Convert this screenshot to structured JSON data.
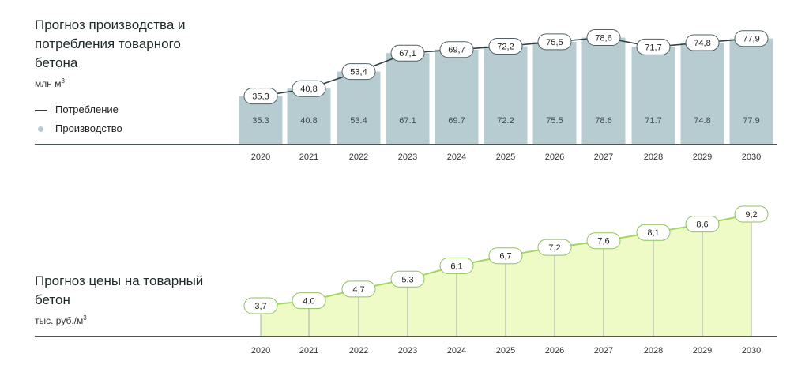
{
  "chart_data": [
    {
      "type": "bar",
      "title": "Прогноз производства и потребления товарного бетона",
      "unit_prefix": "млн м",
      "unit_sup": "3",
      "categories": [
        "2020",
        "2021",
        "2022",
        "2023",
        "2024",
        "2025",
        "2026",
        "2027",
        "2028",
        "2029",
        "2030"
      ],
      "series": [
        {
          "name": "Потребление",
          "kind": "line",
          "color": "#2f3f44",
          "values": [
            "35,3",
            "40,8",
            "53,4",
            "67,1",
            "69,7",
            "72,2",
            "75,5",
            "78,6",
            "71,7",
            "74,8",
            "77,9"
          ]
        },
        {
          "name": "Производство",
          "kind": "bar",
          "color": "#b7ccd0",
          "values": [
            "35.3",
            "40.8",
            "53.4",
            "67.1",
            "69.7",
            "72.2",
            "75.5",
            "78.6",
            "71.7",
            "74.8",
            "77.9"
          ]
        }
      ],
      "legend": "left"
    },
    {
      "type": "area",
      "title": "Прогноз цены на товарный бетон",
      "unit_prefix": "тыс. руб./м",
      "unit_sup": "3",
      "categories": [
        "2020",
        "2021",
        "2022",
        "2023",
        "2024",
        "2025",
        "2026",
        "2027",
        "2028",
        "2029",
        "2030"
      ],
      "values": [
        "3,7",
        "4.0",
        "4,7",
        "5.3",
        "6,1",
        "6,7",
        "7,2",
        "7,6",
        "8,1",
        "8,6",
        "9,2"
      ],
      "fill": "#eefbc6",
      "line": "#a3d65f"
    }
  ]
}
